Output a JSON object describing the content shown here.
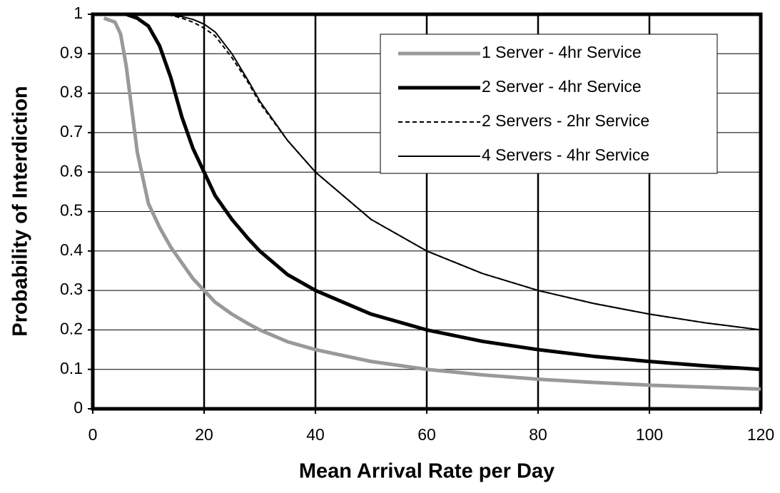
{
  "chart_data": {
    "type": "line",
    "xlabel": "Mean Arrival Rate per Day",
    "ylabel": "Probability of Interdiction",
    "x": [
      2,
      4,
      5,
      6,
      7,
      8,
      10,
      12,
      14,
      15,
      16,
      18,
      20,
      22,
      25,
      28,
      30,
      35,
      40,
      50,
      60,
      70,
      80,
      90,
      100,
      110,
      120
    ],
    "series": [
      {
        "name": "1 Server - 4hr Service",
        "color": "#999999",
        "line_width": 5,
        "dashed": false,
        "values": [
          0.99,
          0.98,
          0.95,
          0.87,
          0.76,
          0.65,
          0.52,
          0.46,
          0.41,
          0.39,
          0.37,
          0.33,
          0.3,
          0.27,
          0.24,
          0.215,
          0.2,
          0.17,
          0.15,
          0.12,
          0.1,
          0.086,
          0.075,
          0.067,
          0.06,
          0.055,
          0.05
        ]
      },
      {
        "name": "2 Server - 4hr Service",
        "color": "#000000",
        "line_width": 5,
        "dashed": false,
        "values": [
          1,
          1,
          1,
          1,
          0.995,
          0.99,
          0.97,
          0.92,
          0.84,
          0.79,
          0.74,
          0.66,
          0.6,
          0.54,
          0.48,
          0.43,
          0.4,
          0.34,
          0.3,
          0.24,
          0.2,
          0.171,
          0.15,
          0.133,
          0.12,
          0.109,
          0.1
        ]
      },
      {
        "name": "2 Servers - 2hr Service",
        "color": "#000000",
        "line_width": 2,
        "dashed": true,
        "values": [
          1,
          1,
          1,
          1,
          1,
          1,
          1,
          1,
          0.997,
          0.994,
          0.99,
          0.98,
          0.965,
          0.945,
          0.89,
          0.825,
          0.775,
          0.68,
          0.6,
          0.48,
          0.4,
          0.343,
          0.3,
          0.267,
          0.24,
          0.218,
          0.2
        ]
      },
      {
        "name": "4 Servers - 4hr Service",
        "color": "#000000",
        "line_width": 2,
        "dashed": false,
        "values": [
          1,
          1,
          1,
          1,
          1,
          1,
          1,
          1,
          0.998,
          0.996,
          0.994,
          0.987,
          0.975,
          0.955,
          0.9,
          0.83,
          0.78,
          0.68,
          0.6,
          0.48,
          0.4,
          0.343,
          0.3,
          0.267,
          0.24,
          0.218,
          0.2
        ]
      }
    ],
    "xlim": [
      0,
      120
    ],
    "xticks": [
      0,
      20,
      40,
      60,
      80,
      100,
      120
    ],
    "ylim": [
      0,
      1
    ],
    "yticks": [
      0,
      0.1,
      0.2,
      0.3,
      0.4,
      0.5,
      0.6,
      0.7,
      0.8,
      0.9,
      1
    ],
    "grid": true,
    "legend": "upper right"
  }
}
